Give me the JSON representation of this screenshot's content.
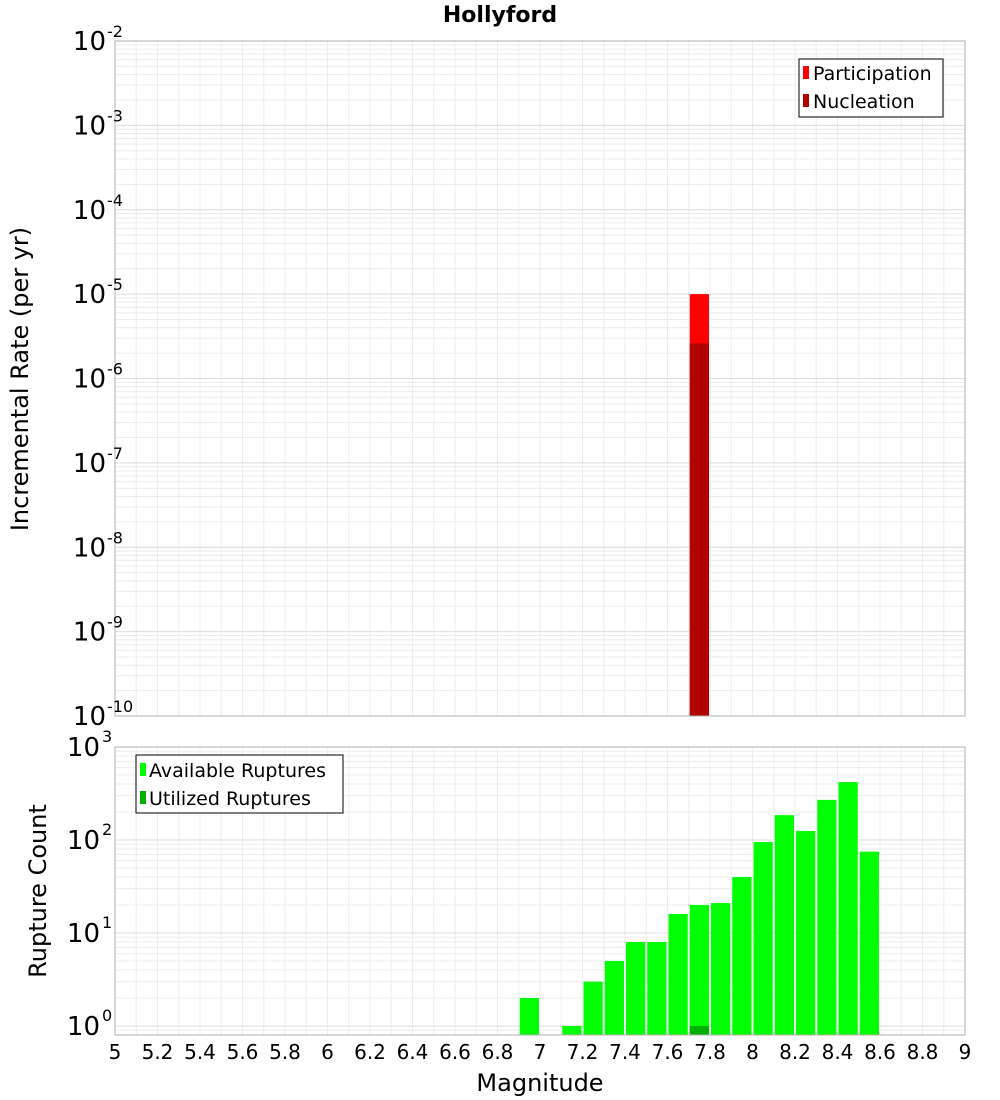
{
  "chart_data": [
    {
      "type": "bar",
      "title": "Hollyford",
      "ylabel": "Incremental Rate (per yr)",
      "yscale": "log",
      "ylim": [
        1e-10,
        0.01
      ],
      "yticks": [
        {
          "base": "10",
          "exp": "-2"
        },
        {
          "base": "10",
          "exp": "-3"
        },
        {
          "base": "10",
          "exp": "-4"
        },
        {
          "base": "10",
          "exp": "-5"
        },
        {
          "base": "10",
          "exp": "-6"
        },
        {
          "base": "10",
          "exp": "-7"
        },
        {
          "base": "10",
          "exp": "-8"
        },
        {
          "base": "10",
          "exp": "-9"
        },
        {
          "base": "10",
          "exp": "-10"
        }
      ],
      "xlim": [
        5,
        9
      ],
      "grid": true,
      "legend_position": "top-right",
      "series": [
        {
          "name": "Participation",
          "color": "#ff0000",
          "x": [
            7.75
          ],
          "values": [
            1e-05
          ]
        },
        {
          "name": "Nucleation",
          "color": "#b00000",
          "x": [
            7.75
          ],
          "values": [
            2.6e-06
          ]
        }
      ]
    },
    {
      "type": "bar",
      "ylabel": "Rupture Count",
      "xlabel": "Magnitude",
      "yscale": "log",
      "ylim": [
        0.8,
        1000
      ],
      "yticks": [
        {
          "base": "10",
          "exp": "0"
        },
        {
          "base": "10",
          "exp": "1"
        },
        {
          "base": "10",
          "exp": "2"
        },
        {
          "base": "10",
          "exp": "3"
        }
      ],
      "xlim": [
        5,
        9
      ],
      "xticks": [
        "5",
        "5.2",
        "5.4",
        "5.6",
        "5.8",
        "6",
        "6.2",
        "6.4",
        "6.6",
        "6.8",
        "7",
        "7.2",
        "7.4",
        "7.6",
        "7.8",
        "8",
        "8.2",
        "8.4",
        "8.6",
        "8.8",
        "9"
      ],
      "grid": true,
      "legend_position": "top-left",
      "series": [
        {
          "name": "Available Ruptures",
          "color": "#00ff00",
          "x": [
            6.95,
            7.15,
            7.25,
            7.35,
            7.45,
            7.55,
            7.65,
            7.75,
            7.85,
            7.95,
            8.05,
            8.15,
            8.25,
            8.35,
            8.45,
            8.55
          ],
          "values": [
            2,
            1,
            3,
            5,
            8,
            8,
            16,
            20,
            21,
            40,
            95,
            185,
            125,
            270,
            420,
            75
          ]
        },
        {
          "name": "Utilized Ruptures",
          "color": "#00b000",
          "x": [
            7.75
          ],
          "values": [
            1
          ]
        }
      ]
    }
  ]
}
